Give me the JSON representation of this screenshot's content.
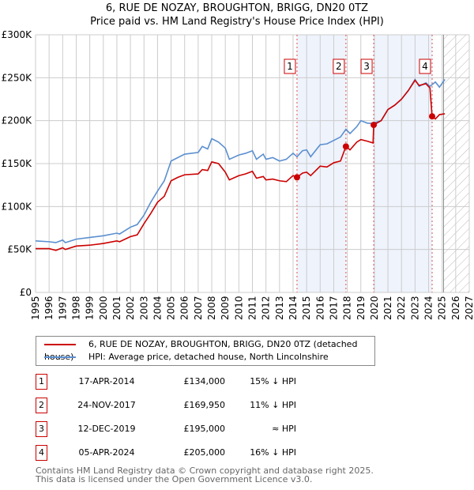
{
  "title": "6, RUE DE NOZAY, BROUGHTON, BRIGG, DN20 0TZ",
  "subtitle": "Price paid vs. HM Land Registry's House Price Index (HPI)",
  "colors": {
    "property": "#cc0000",
    "hpi": "#5b8fd0",
    "shade": "#eef3fc"
  },
  "chart_data": {
    "type": "line",
    "title": "6, RUE DE NOZAY, BROUGHTON, BRIGG, DN20 0TZ — Price paid vs. HM Land Registry's House Price Index (HPI)",
    "xlim": [
      1995,
      2027
    ],
    "ylim": [
      0,
      300000
    ],
    "x_ticks": [
      "1995",
      "1996",
      "1997",
      "1998",
      "1999",
      "2000",
      "2001",
      "2002",
      "2003",
      "2004",
      "2005",
      "2006",
      "2007",
      "2008",
      "2009",
      "2010",
      "2011",
      "2012",
      "2013",
      "2014",
      "2015",
      "2016",
      "2017",
      "2018",
      "2019",
      "2020",
      "2021",
      "2022",
      "2023",
      "2024",
      "2025",
      "2026",
      "2027"
    ],
    "y_ticks": [
      {
        "v": 0,
        "label": "£0"
      },
      {
        "v": 50000,
        "label": "£50K"
      },
      {
        "v": 100000,
        "label": "£100K"
      },
      {
        "v": 150000,
        "label": "£150K"
      },
      {
        "v": 200000,
        "label": "£200K"
      },
      {
        "v": 250000,
        "label": "£250K"
      },
      {
        "v": 300000,
        "label": "£300K"
      }
    ],
    "forecast_from": 2025.1,
    "series": [
      {
        "name": "6, RUE DE NOZAY, BROUGHTON, BRIGG, DN20 0TZ (detached house)",
        "color": "#cc0000",
        "x": [
          1995,
          1996,
          1996.5,
          1997,
          1997.2,
          1998,
          1999,
          2000,
          2001,
          2001.2,
          2002,
          2002.5,
          2003,
          2003.5,
          2004,
          2004.5,
          2005,
          2005.5,
          2006,
          2007,
          2007.3,
          2007.7,
          2008,
          2008.5,
          2009,
          2009.3,
          2010,
          2010.5,
          2011,
          2011.3,
          2011.8,
          2012,
          2012.5,
          2013,
          2013.5,
          2014,
          2014.29,
          2014.7,
          2015,
          2015.3,
          2016,
          2016.5,
          2017,
          2017.5,
          2017.9,
          2018.2,
          2018.7,
          2019,
          2019.5,
          2019.9,
          2019.95,
          2020.5,
          2021,
          2021.5,
          2022,
          2022.5,
          2023,
          2023.3,
          2023.8,
          2024.1,
          2024.26,
          2024.5,
          2024.8,
          2025.2
        ],
        "y": [
          51000,
          51000,
          49000,
          52000,
          50000,
          54000,
          55000,
          57000,
          60000,
          59000,
          65000,
          67000,
          80000,
          92000,
          105000,
          112000,
          130000,
          134000,
          137000,
          138000,
          143000,
          142000,
          152000,
          150000,
          140000,
          131000,
          136000,
          138000,
          141000,
          133000,
          135000,
          131000,
          132000,
          130000,
          129000,
          136000,
          134000,
          139000,
          140000,
          136000,
          147000,
          146000,
          151000,
          153000,
          170000,
          166000,
          175000,
          178000,
          176000,
          174000,
          195000,
          200000,
          213000,
          218000,
          225000,
          235000,
          247000,
          241000,
          243000,
          238000,
          205000,
          202000,
          207000,
          208000
        ]
      },
      {
        "name": "HPI: Average price, detached house, North Lincolnshire",
        "color": "#5b8fd0",
        "x": [
          1995,
          1996,
          1996.5,
          1997,
          1997.2,
          1998,
          1999,
          2000,
          2001,
          2001.2,
          2002,
          2002.5,
          2003,
          2003.5,
          2004,
          2004.5,
          2005,
          2005.5,
          2006,
          2007,
          2007.3,
          2007.7,
          2008,
          2008.5,
          2009,
          2009.3,
          2010,
          2010.5,
          2011,
          2011.3,
          2011.8,
          2012,
          2012.5,
          2013,
          2013.5,
          2014,
          2014.29,
          2014.7,
          2015,
          2015.3,
          2016,
          2016.5,
          2017,
          2017.5,
          2017.9,
          2018.2,
          2018.7,
          2019,
          2019.5,
          2019.9,
          2020.5,
          2021,
          2021.5,
          2022,
          2022.5,
          2023,
          2023.3,
          2023.8,
          2024.1,
          2024.5,
          2024.8,
          2025.2
        ],
        "y": [
          60000,
          59000,
          58000,
          61000,
          58000,
          62000,
          64000,
          66000,
          69000,
          68000,
          76000,
          79000,
          90000,
          105000,
          118000,
          130000,
          153000,
          157000,
          161000,
          163000,
          170000,
          167000,
          179000,
          175000,
          168000,
          155000,
          160000,
          162000,
          165000,
          155000,
          161000,
          155000,
          157000,
          153000,
          155000,
          162000,
          158000,
          165000,
          166000,
          158000,
          172000,
          173000,
          177000,
          181000,
          190000,
          185000,
          193000,
          200000,
          197000,
          197000,
          200000,
          213000,
          218000,
          225000,
          235000,
          248000,
          240000,
          244000,
          240000,
          245000,
          239000,
          248000
        ]
      }
    ],
    "sales": [
      {
        "n": "1",
        "x": 2014.29,
        "date": "17-APR-2014",
        "price": 134000,
        "price_label": "£134,000",
        "hpi": "15% ↓ HPI"
      },
      {
        "n": "2",
        "x": 2017.9,
        "date": "24-NOV-2017",
        "price": 169950,
        "price_label": "£169,950",
        "hpi": "11% ↓ HPI"
      },
      {
        "n": "3",
        "x": 2019.95,
        "date": "12-DEC-2019",
        "price": 195000,
        "price_label": "£195,000",
        "hpi": "≈ HPI"
      },
      {
        "n": "4",
        "x": 2024.26,
        "date": "05-APR-2024",
        "price": 205000,
        "price_label": "£205,000",
        "hpi": "16% ↓ HPI"
      }
    ]
  },
  "legend": {
    "property": "6, RUE DE NOZAY, BROUGHTON, BRIGG, DN20 0TZ (detached house)",
    "hpi": "HPI: Average price, detached house, North Lincolnshire"
  },
  "footer": {
    "line1": "Contains HM Land Registry data © Crown copyright and database right 2025.",
    "line2": "This data is licensed under the Open Government Licence v3.0."
  }
}
